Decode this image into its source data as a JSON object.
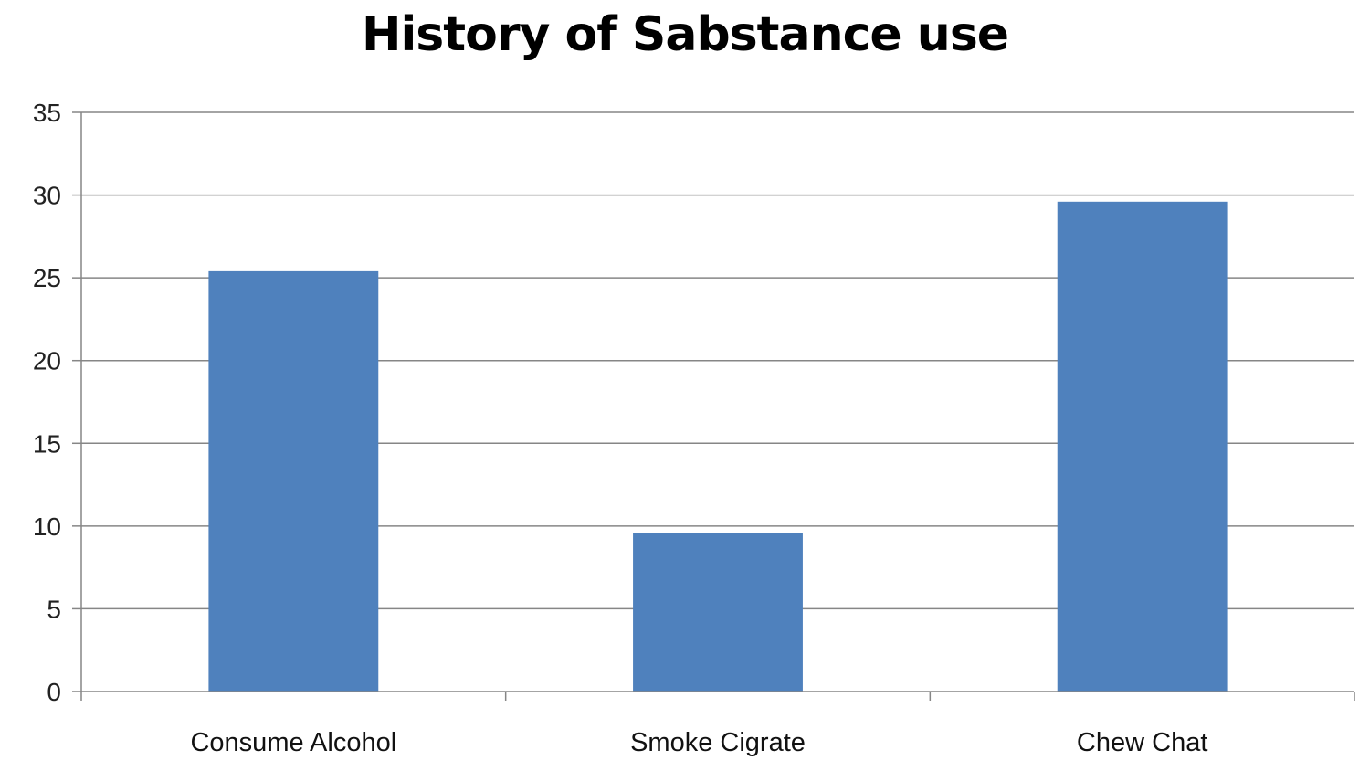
{
  "chart_data": {
    "type": "bar",
    "title": "History of Sabstance use",
    "xlabel": "",
    "ylabel": "",
    "categories": [
      "Consume Alcohol",
      "Smoke Cigrate",
      "Chew Chat"
    ],
    "values": [
      25.4,
      9.6,
      29.6
    ],
    "ylim": [
      0,
      35
    ],
    "yticks": [
      "0",
      "5",
      "10",
      "15",
      "20",
      "25",
      "30",
      "35"
    ],
    "grid": true,
    "legend": "none",
    "bar_color": "#4F81BD",
    "grid_color": "#868686"
  }
}
